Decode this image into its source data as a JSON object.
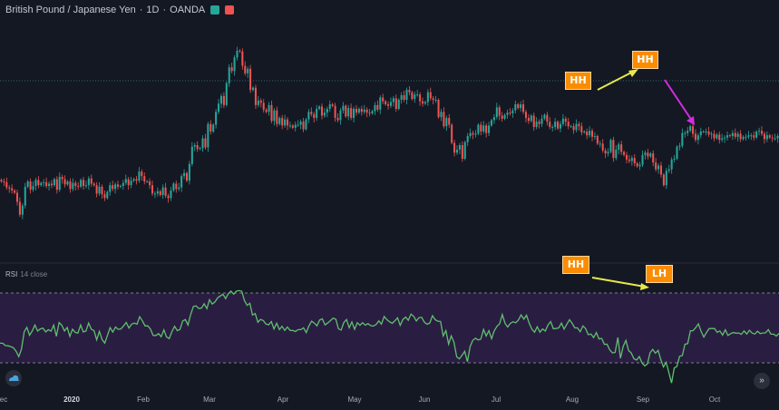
{
  "header": {
    "symbol": "British Pound / Japanese Yen",
    "interval": "1D",
    "exchange": "OANDA",
    "sep": "·",
    "badge_colors": [
      "#26a69a",
      "#ef5350"
    ]
  },
  "rsi_panel": {
    "name": "RSI",
    "params": "14 close"
  },
  "colors": {
    "background": "#141823",
    "up_candle": "#26a69a",
    "down_candle": "#ef5350",
    "rsi_line": "#5fbf6d",
    "rsi_band": "#2a1d42",
    "annotation_box": "#fb8c00",
    "yellow_arrow": "#e7e84a",
    "magenta_arrow": "#d22ce0"
  },
  "icons": {
    "left_bottom": "tradingview-cloud-icon",
    "right_bottom": "scroll-right-icon"
  },
  "annotations": [
    {
      "id": "price-hh-1",
      "text": "HH"
    },
    {
      "id": "price-hh-2",
      "text": "HH"
    },
    {
      "id": "rsi-hh",
      "text": "HH"
    },
    {
      "id": "rsi-lh",
      "text": "LH"
    }
  ],
  "x_axis_labels": [
    "ec",
    "2020",
    "Feb",
    "Mar",
    "Apr",
    "May",
    "Jun",
    "Jul",
    "Aug",
    "Sep",
    "Oct"
  ],
  "chart_data": [
    {
      "type": "candlestick",
      "series": [
        {
          "name": "",
          "closes": [
            84,
            83,
            76,
            75,
            72,
            69,
            57,
            40,
            52,
            77,
            84,
            73,
            78,
            86,
            79,
            82,
            83,
            78,
            81,
            79,
            87,
            73,
            90,
            87,
            80,
            84,
            74,
            82,
            78,
            77,
            86,
            78,
            79,
            88,
            81,
            79,
            68,
            77,
            67,
            62,
            70,
            79,
            74,
            80,
            77,
            78,
            82,
            87,
            79,
            85,
            87,
            85,
            97,
            91,
            84,
            84,
            79,
            68,
            68,
            71,
            66,
            76,
            65,
            62,
            72,
            81,
            74,
            76,
            91,
            95,
            85,
            107,
            130,
            132,
            127,
            128,
            141,
            129,
            160,
            150,
            159,
            176,
            187,
            197,
            185,
            214,
            235,
            230,
            248,
            257,
            256,
            237,
            227,
            233,
            205,
            208,
            185,
            191,
            188,
            179,
            176,
            185,
            164,
            178,
            160,
            168,
            158,
            166,
            158,
            158,
            155,
            159,
            159,
            163,
            153,
            166,
            176,
            173,
            168,
            180,
            183,
            171,
            175,
            180,
            186,
            184,
            168,
            165,
            178,
            184,
            170,
            181,
            168,
            180,
            175,
            180,
            176,
            179,
            175,
            174,
            177,
            185,
            179,
            195,
            190,
            186,
            184,
            189,
            194,
            180,
            192,
            198,
            192,
            205,
            202,
            193,
            199,
            199,
            190,
            187,
            189,
            202,
            194,
            192,
            192,
            169,
            176,
            157,
            168,
            159,
            135,
            122,
            126,
            132,
            114,
            136,
            144,
            148,
            146,
            147,
            159,
            150,
            158,
            148,
            158,
            165,
            169,
            182,
            171,
            167,
            172,
            175,
            174,
            178,
            186,
            181,
            186,
            176,
            168,
            164,
            171,
            156,
            163,
            160,
            167,
            172,
            163,
            156,
            156,
            163,
            154,
            160,
            167,
            163,
            157,
            157,
            152,
            160,
            157,
            149,
            150,
            145,
            151,
            143,
            144,
            134,
            134,
            125,
            121,
            123,
            139,
            115,
            126,
            133,
            123,
            119,
            113,
            111,
            115,
            108,
            104,
            106,
            119,
            122,
            117,
            121,
            109,
            100,
            105,
            93,
            79,
            98,
            100,
            113,
            114,
            130,
            131,
            148,
            148,
            151,
            157,
            147,
            139,
            145,
            150,
            150,
            150,
            146,
            147,
            141,
            146,
            139,
            141,
            142,
            145,
            144,
            148,
            143,
            147,
            140,
            143,
            143,
            145,
            145,
            142,
            150,
            151,
            147,
            140,
            145,
            142,
            141,
            141,
            144
          ],
          "y_ticks": []
        }
      ],
      "title": "",
      "xlabel": "",
      "ylabel": "",
      "grid": false
    },
    {
      "type": "line",
      "series": [
        {
          "name": "RSI",
          "values": [
            67.4,
            67.4,
            70,
            70.2,
            71.1,
            72.4,
            76.3,
            82.1,
            73.8,
            54.7,
            49.9,
            58.6,
            53.9,
            47.3,
            54,
            51.6,
            50.7,
            54.9,
            52.4,
            54.1,
            47.4,
            59.7,
            44.6,
            47.5,
            53.9,
            50,
            59.8,
            51.9,
            55.4,
            56.2,
            47.3,
            54.9,
            54,
            45.2,
            51.9,
            53.6,
            63.6,
            54.3,
            63.4,
            67.3,
            58.7,
            50.2,
            55.1,
            49.5,
            52.1,
            51.6,
            48.3,
            44.5,
            50.7,
            46.4,
            45.2,
            46.4,
            38.2,
            42.7,
            48.3,
            48.3,
            51.7,
            58.7,
            58.9,
            56.8,
            60.2,
            52.7,
            60.4,
            62.3,
            54.5,
            48.7,
            53.5,
            52.2,
            42.9,
            41.3,
            47.3,
            35.5,
            26.8,
            26.2,
            29.2,
            28.7,
            23.9,
            29.2,
            19.4,
            24.2,
            21.9,
            17.5,
            15.3,
            13.4,
            18.2,
            12.7,
            9.9,
            13.3,
            10,
            9.4,
            10,
            20.3,
            25.6,
            23.4,
            36.3,
            34.7,
            44.2,
            41.1,
            42.4,
            46.2,
            47.1,
            43.5,
            51.7,
            45.3,
            52.4,
            48.7,
            53.3,
            49.5,
            53.3,
            53.3,
            54.5,
            52.4,
            52.4,
            50.4,
            55.6,
            48.4,
            43.1,
            45.2,
            48.2,
            41.8,
            40.5,
            47.1,
            45.1,
            42.5,
            39.8,
            40.9,
            51.4,
            52.9,
            44.6,
            41.3,
            50.3,
            43.9,
            52,
            44.8,
            47.6,
            44.8,
            47.5,
            45.8,
            48,
            48.5,
            46.8,
            42.8,
            46.3,
            37.9,
            41.3,
            43.7,
            45.4,
            42.7,
            39.4,
            47.7,
            41.2,
            38.6,
            42.1,
            35.3,
            37.8,
            42.9,
            39.1,
            38.9,
            44.3,
            46.5,
            45.1,
            37,
            41.5,
            43.1,
            43.4,
            59.4,
            53.5,
            68.4,
            59.3,
            66.4,
            82.4,
            84.6,
            80.6,
            76.3,
            87.7,
            71.1,
            64.3,
            61.8,
            63.8,
            62.9,
            52.2,
            59.4,
            53.5,
            62.3,
            53.7,
            48.8,
            45.9,
            35.8,
            45.5,
            49.5,
            45.5,
            43.7,
            44.9,
            41.7,
            36.2,
            40.8,
            36.6,
            45.3,
            51.9,
            55.2,
            49.2,
            55.2,
            51.6,
            54,
            47.2,
            43.5,
            51.4,
            51.2,
            50.4,
            45.2,
            51.8,
            46.6,
            41.4,
            45.5,
            50.5,
            50.5,
            54.6,
            48.3,
            51.2,
            57.9,
            57.3,
            61.2,
            55.6,
            62.6,
            62.1,
            68.7,
            68.4,
            74.8,
            78.1,
            77.5,
            61.1,
            84,
            70.8,
            64.3,
            75.4,
            78.2,
            84.5,
            85.9,
            82,
            89.1,
            92.4,
            90.2,
            77.9,
            74.2,
            78.4,
            75.3,
            85.5,
            93.6,
            88.3,
            99.9,
            111.2,
            94.7,
            92.9,
            81.8,
            81,
            68.5,
            67.8,
            53.6,
            53.6,
            50.2,
            46,
            54.3,
            60.6,
            55.6,
            51.2,
            51.1,
            51.2,
            55.4,
            53.8,
            58.4,
            52.6,
            58.8,
            56.8,
            55.6,
            56.3,
            56.1,
            57.6,
            53.9,
            57.2,
            53.1,
            56.2,
            57.3,
            54.2,
            56.8,
            56.1,
            55.9,
            52.4,
            57.4,
            57.4,
            59.5,
            56.6
          ]
        }
      ],
      "levels": [
        70,
        30
      ],
      "ylim": [
        110,
        0
      ],
      "title": "",
      "xlabel": "",
      "ylabel": "",
      "grid": false
    }
  ]
}
